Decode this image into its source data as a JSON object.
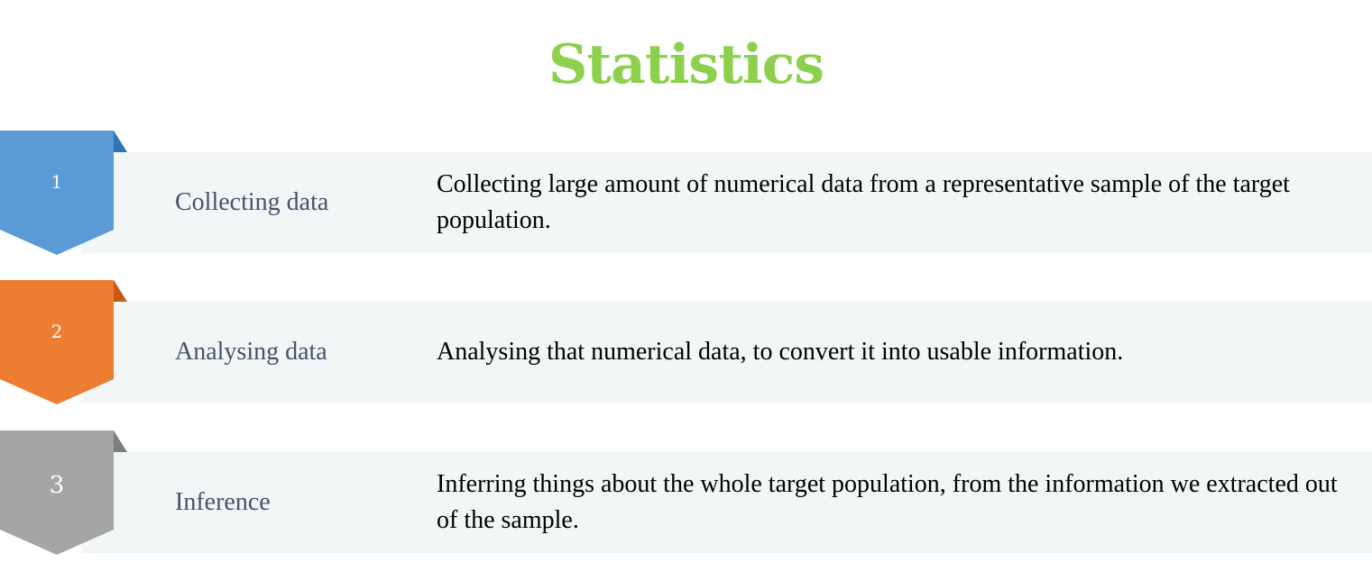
{
  "title": "Statistics",
  "steps": [
    {
      "number": "1",
      "label": "Collecting data",
      "description": "Collecting large amount of numerical data from a representative sample of the target population.",
      "color": "#5b9bd5",
      "fold_color": "#2e75b6"
    },
    {
      "number": "2",
      "label": "Analysing data",
      "description": "Analysing that numerical data, to convert it into usable information.",
      "color": "#ed7d31",
      "fold_color": "#c55a11"
    },
    {
      "number": "3",
      "label": "Inference",
      "description": "Inferring things about the whole target population, from the information we extracted out of the sample.",
      "color": "#a5a5a5",
      "fold_color": "#7f7f7f"
    }
  ]
}
